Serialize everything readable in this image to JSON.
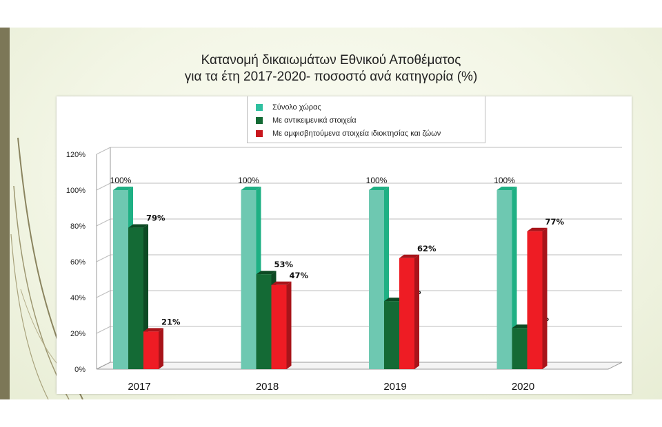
{
  "slide": {
    "title_line1": "Κατανομή δικαιωμάτων Εθνικού Αποθέματος",
    "title_line2": "για τα έτη 2017-2020- ποσοστό ανά κατηγορία  (%)"
  },
  "chart_data": {
    "type": "bar",
    "title": "Κατανομή δικαιωμάτων Εθνικού Αποθέματος για τα έτη 2017-2020- ποσοστό ανά κατηγορία  (%)",
    "categories": [
      "2017",
      "2018",
      "2019",
      "2020"
    ],
    "series": [
      {
        "name": "Σύνολο χώρας",
        "values": [
          100,
          100,
          100,
          100
        ],
        "labels": [
          "100%",
          "100%",
          "100%",
          "100%"
        ],
        "color": "#6ec8b1",
        "color_side": "#1fb084"
      },
      {
        "name": "Με αντικειμενικά στοιχεία",
        "values": [
          79,
          53,
          38,
          23
        ],
        "labels": [
          "79%",
          "53%",
          "38%",
          "23%"
        ],
        "color": "#146a35",
        "color_side": "#0d4a24"
      },
      {
        "name": "Με αμφισβητούμενα στοιχεία ιδιοκτησίας και ζώων",
        "values": [
          21,
          47,
          62,
          77
        ],
        "labels": [
          "21%",
          "47%",
          "62%",
          "77%"
        ],
        "color": "#ee1c24",
        "color_side": "#a8141a"
      }
    ],
    "yticks": [
      "0%",
      "20%",
      "40%",
      "60%",
      "80%",
      "100%",
      "120%"
    ],
    "ylim": [
      0,
      120
    ],
    "grid": true,
    "legend_position": "top-center",
    "style": "3d-bar"
  }
}
